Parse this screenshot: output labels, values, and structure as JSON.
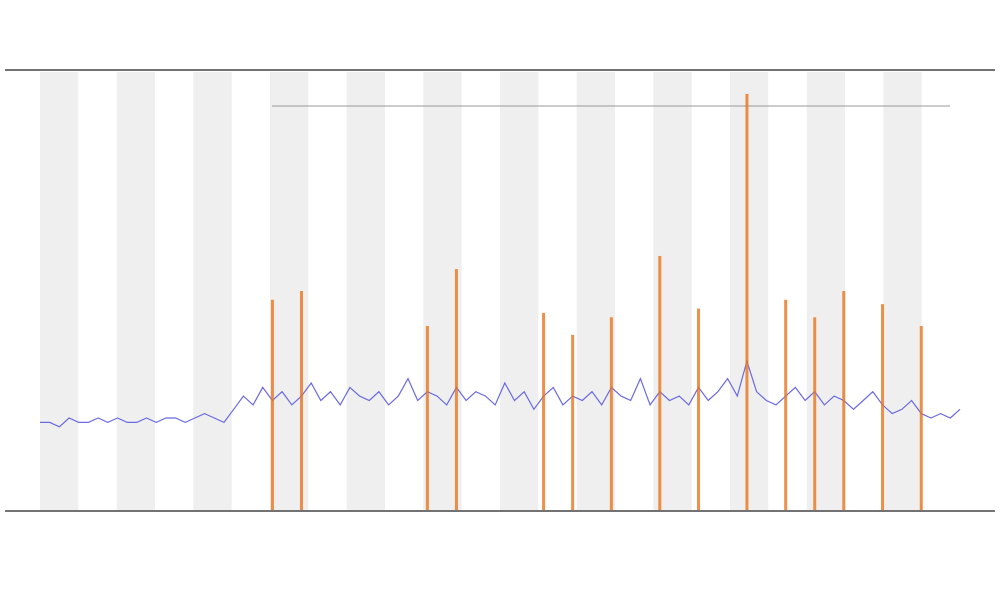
{
  "chart_data": {
    "type": "line",
    "ylim": [
      0,
      100
    ],
    "xlim": [
      0,
      95
    ],
    "series": [
      {
        "color": "#6a6ae0",
        "values": [
          20,
          20,
          19,
          21,
          20,
          20,
          21,
          20,
          21,
          20,
          20,
          21,
          20,
          21,
          21,
          20,
          21,
          22,
          21,
          20,
          23,
          26,
          24,
          28,
          25,
          27,
          24,
          26,
          29,
          25,
          27,
          24,
          28,
          26,
          25,
          27,
          24,
          26,
          30,
          25,
          27,
          26,
          24,
          28,
          25,
          27,
          26,
          24,
          29,
          25,
          27,
          23,
          26,
          28,
          24,
          26,
          25,
          27,
          24,
          28,
          26,
          25,
          30,
          24,
          27,
          25,
          26,
          24,
          28,
          25,
          27,
          30,
          26,
          34,
          27,
          25,
          24,
          26,
          28,
          25,
          27,
          24,
          26,
          25,
          23,
          25,
          27,
          24,
          22,
          23,
          25,
          22,
          21,
          22,
          21,
          23
        ]
      },
      {
        "type": "bar",
        "color": "#e8741c",
        "x": [
          24,
          27,
          40,
          43,
          52,
          55,
          59,
          64,
          68,
          73,
          77,
          80,
          83,
          87,
          91
        ],
        "values": [
          48,
          50,
          42,
          55,
          45,
          40,
          44,
          58,
          46,
          95,
          48,
          44,
          50,
          47,
          42
        ]
      }
    ]
  }
}
